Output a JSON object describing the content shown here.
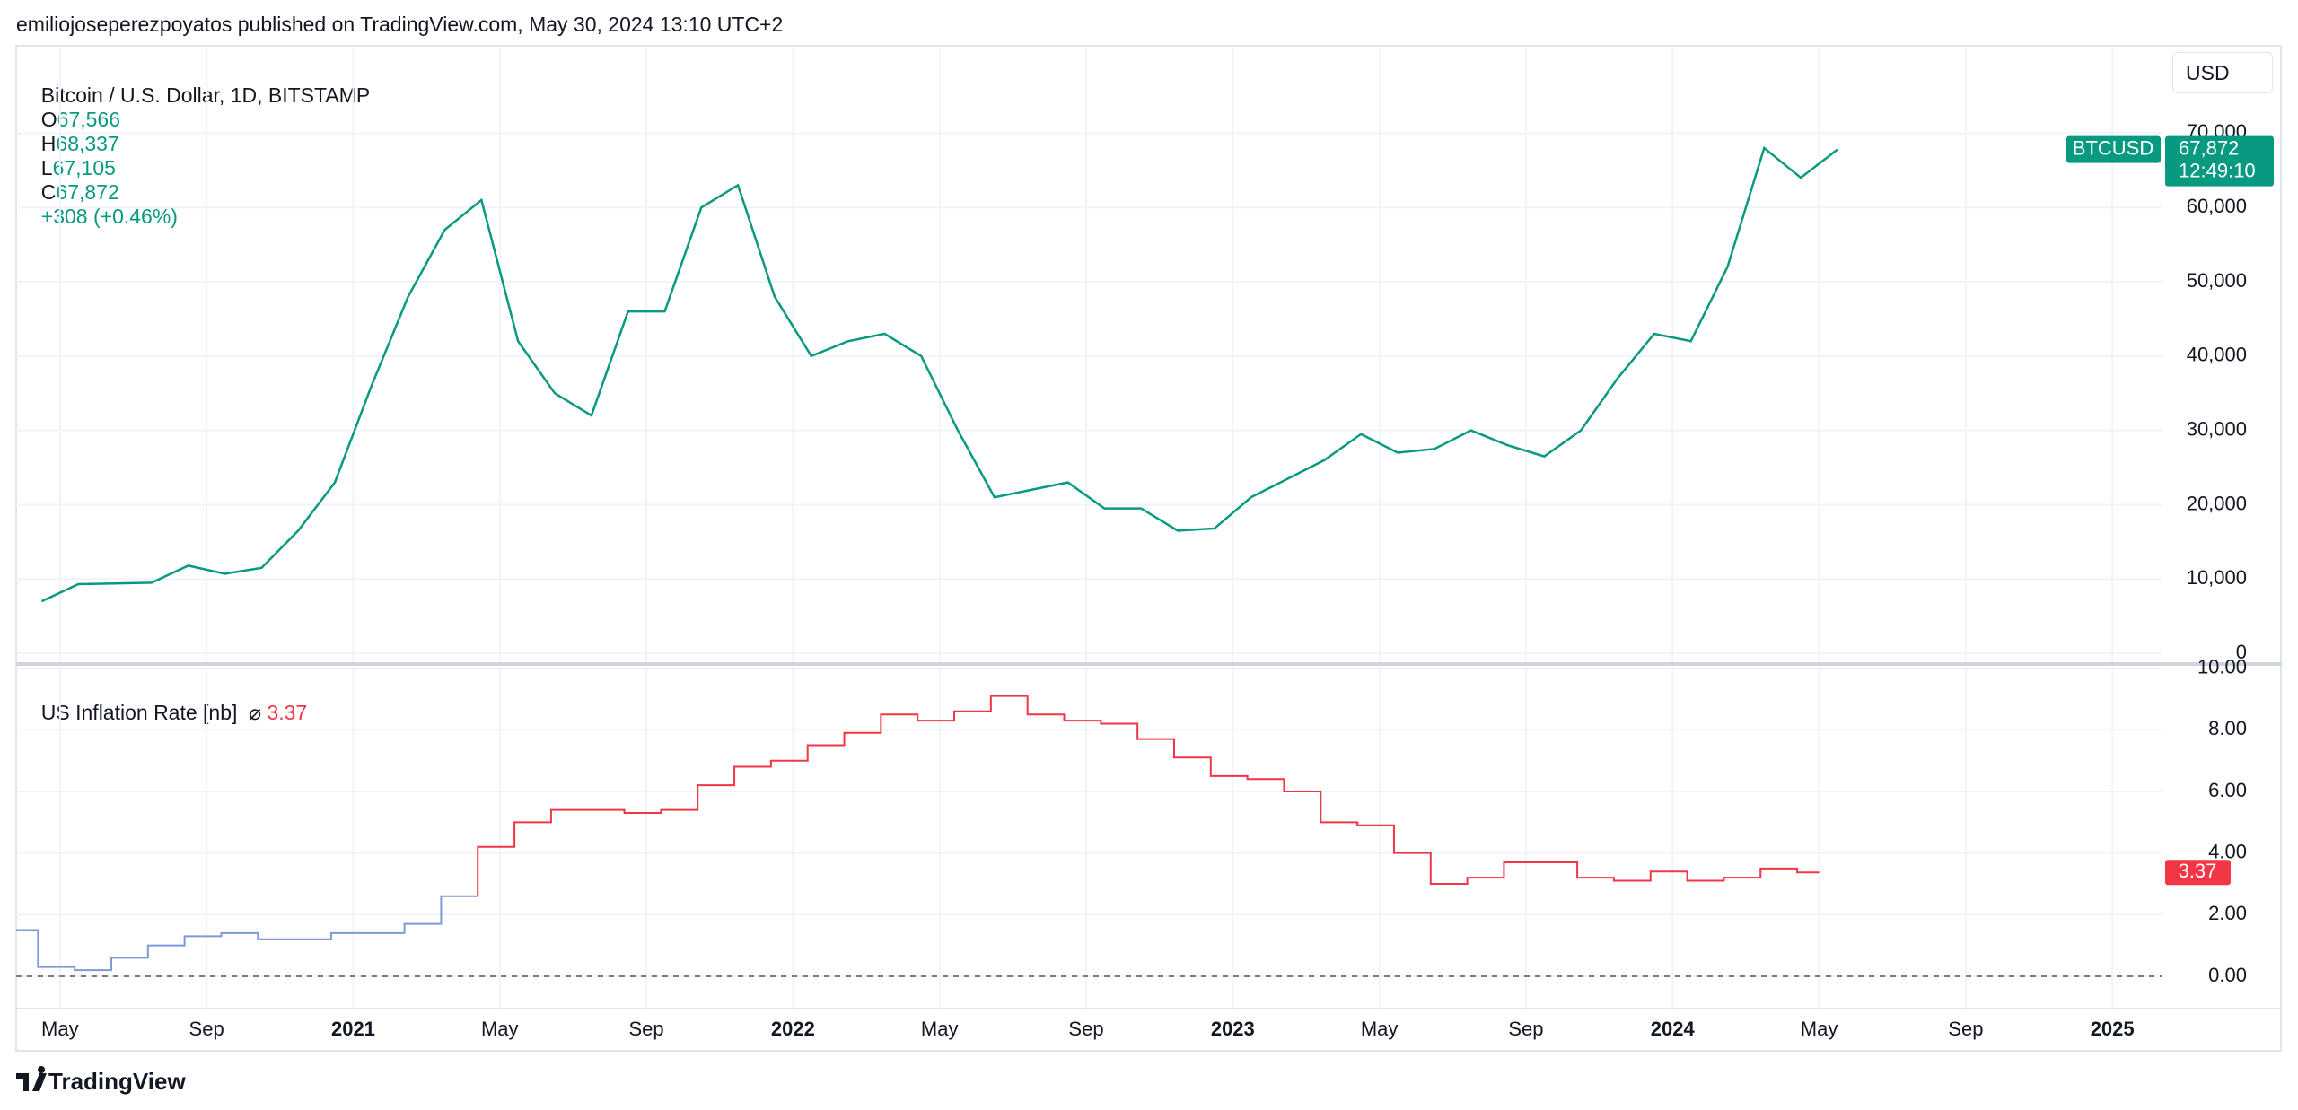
{
  "header": {
    "published": "emiliojoseperezpoyatos published on TradingView.com, May 30, 2024 13:10 UTC+2",
    "symbol": "Bitcoin / U.S. Dollar, 1D, BITSTAMP",
    "ohlc": [
      {
        "key": "O",
        "value": "67,566"
      },
      {
        "key": "H",
        "value": "68,337"
      },
      {
        "key": "L",
        "value": "67,105"
      },
      {
        "key": "C",
        "value": "67,872"
      }
    ],
    "change": "+308 (+0.46%)",
    "currency": "USD",
    "ticker": "BTCUSD",
    "countdown": "12:49:10"
  },
  "chart_data": [
    {
      "type": "line",
      "color": "#089981",
      "x": [
        "2020-04",
        "2020-05",
        "2020-06",
        "2020-07",
        "2020-08",
        "2020-09",
        "2020-10",
        "2020-11",
        "2020-12",
        "2021-01",
        "2021-02",
        "2021-03",
        "2021-04",
        "2021-05",
        "2021-06",
        "2021-07",
        "2021-08",
        "2021-09",
        "2021-10",
        "2021-11",
        "2021-12",
        "2022-01",
        "2022-02",
        "2022-03",
        "2022-04",
        "2022-05",
        "2022-06",
        "2022-07",
        "2022-08",
        "2022-09",
        "2022-10",
        "2022-11",
        "2022-12",
        "2023-01",
        "2023-02",
        "2023-03",
        "2023-04",
        "2023-05",
        "2023-06",
        "2023-07",
        "2023-08",
        "2023-09",
        "2023-10",
        "2023-11",
        "2023-12",
        "2024-01",
        "2024-02",
        "2024-03",
        "2024-04",
        "2024-05"
      ],
      "values": [
        7000,
        9300,
        9400,
        9500,
        11800,
        10700,
        11500,
        16500,
        23000,
        36000,
        48000,
        57000,
        61000,
        42000,
        35000,
        32000,
        46000,
        46000,
        60000,
        63000,
        48000,
        40000,
        42000,
        43000,
        40000,
        30000,
        21000,
        22000,
        23000,
        19500,
        19500,
        16500,
        16800,
        21000,
        23500,
        26000,
        29500,
        27000,
        27500,
        30000,
        28000,
        26500,
        30000,
        37000,
        43000,
        42000,
        52000,
        68000,
        64000,
        67800
      ],
      "xlim": [
        "2020-04",
        "2025-02"
      ],
      "ylim": [
        -1200,
        81400
      ],
      "yticks": [
        0,
        {
          "value": 10000,
          "label": "10,000"
        },
        {
          "value": 20000,
          "label": "20,000"
        },
        {
          "value": 30000,
          "label": "30,000"
        },
        {
          "value": 40000,
          "label": "40,000"
        },
        {
          "value": 50000,
          "label": "50,000"
        },
        {
          "value": 60000,
          "label": "60,000"
        },
        {
          "value": 70000,
          "label": "70,000"
        }
      ],
      "grid": true
    },
    {
      "type": "step",
      "title": "US Inflation Rate [nb]",
      "symbol": "⌀",
      "series": [
        {
          "color": "#7e9bd6",
          "x": [
            "2020-03",
            "2020-04",
            "2020-05",
            "2020-06",
            "2020-07",
            "2020-08",
            "2020-09",
            "2020-10",
            "2020-11",
            "2020-12",
            "2021-01",
            "2021-02",
            "2021-03"
          ],
          "values": [
            1.5,
            0.3,
            0.2,
            0.6,
            1.0,
            1.3,
            1.4,
            1.2,
            1.2,
            1.4,
            1.4,
            1.7,
            2.6
          ]
        },
        {
          "color": "#f23645",
          "x": [
            "2021-04",
            "2021-05",
            "2021-06",
            "2021-07",
            "2021-08",
            "2021-09",
            "2021-10",
            "2021-11",
            "2021-12",
            "2022-01",
            "2022-02",
            "2022-03",
            "2022-04",
            "2022-05",
            "2022-06",
            "2022-07",
            "2022-08",
            "2022-09",
            "2022-10",
            "2022-11",
            "2022-12",
            "2023-01",
            "2023-02",
            "2023-03",
            "2023-04",
            "2023-05",
            "2023-06",
            "2023-07",
            "2023-08",
            "2023-09",
            "2023-10",
            "2023-11",
            "2023-12",
            "2024-01",
            "2024-02",
            "2024-03",
            "2024-04"
          ],
          "values": [
            4.2,
            5.0,
            5.4,
            5.4,
            5.3,
            5.4,
            6.2,
            6.8,
            7.0,
            7.5,
            7.9,
            8.5,
            8.3,
            8.6,
            9.1,
            8.5,
            8.3,
            8.2,
            7.7,
            7.1,
            6.5,
            6.4,
            6.0,
            5.0,
            4.9,
            4.0,
            3.0,
            3.2,
            3.7,
            3.7,
            3.2,
            3.1,
            3.4,
            3.1,
            3.2,
            3.5,
            3.37
          ]
        }
      ],
      "xlim": [
        "2020-04",
        "2025-02"
      ],
      "ylim": [
        -1.05,
        10.05
      ],
      "yticks": [
        {
          "value": 0,
          "label": "0.00"
        },
        {
          "value": 2,
          "label": "2.00"
        },
        {
          "value": 4,
          "label": "4.00"
        },
        {
          "value": 6,
          "label": "6.00"
        },
        {
          "value": 8,
          "label": "8.00"
        },
        {
          "value": 10,
          "label": "10.00"
        }
      ],
      "xticks": [
        {
          "value": "2020-05",
          "label": "May"
        },
        {
          "value": "2020-09",
          "label": "Sep"
        },
        {
          "value": "2021-01",
          "label": "2021"
        },
        {
          "value": "2021-05",
          "label": "May"
        },
        {
          "value": "2021-09",
          "label": "Sep"
        },
        {
          "value": "2022-01",
          "label": "2022"
        },
        {
          "value": "2022-05",
          "label": "May"
        },
        {
          "value": "2022-09",
          "label": "Sep"
        },
        {
          "value": "2023-01",
          "label": "2023"
        },
        {
          "value": "2023-05",
          "label": "May"
        },
        {
          "value": "2023-09",
          "label": "Sep"
        },
        {
          "value": "2024-01",
          "label": "2024"
        },
        {
          "value": "2024-05",
          "label": "May"
        },
        {
          "value": "2024-09",
          "label": "Sep"
        },
        {
          "value": "2025-01",
          "label": "2025"
        }
      ],
      "grid": true
    }
  ],
  "footer": {
    "brand": "TradingView"
  }
}
